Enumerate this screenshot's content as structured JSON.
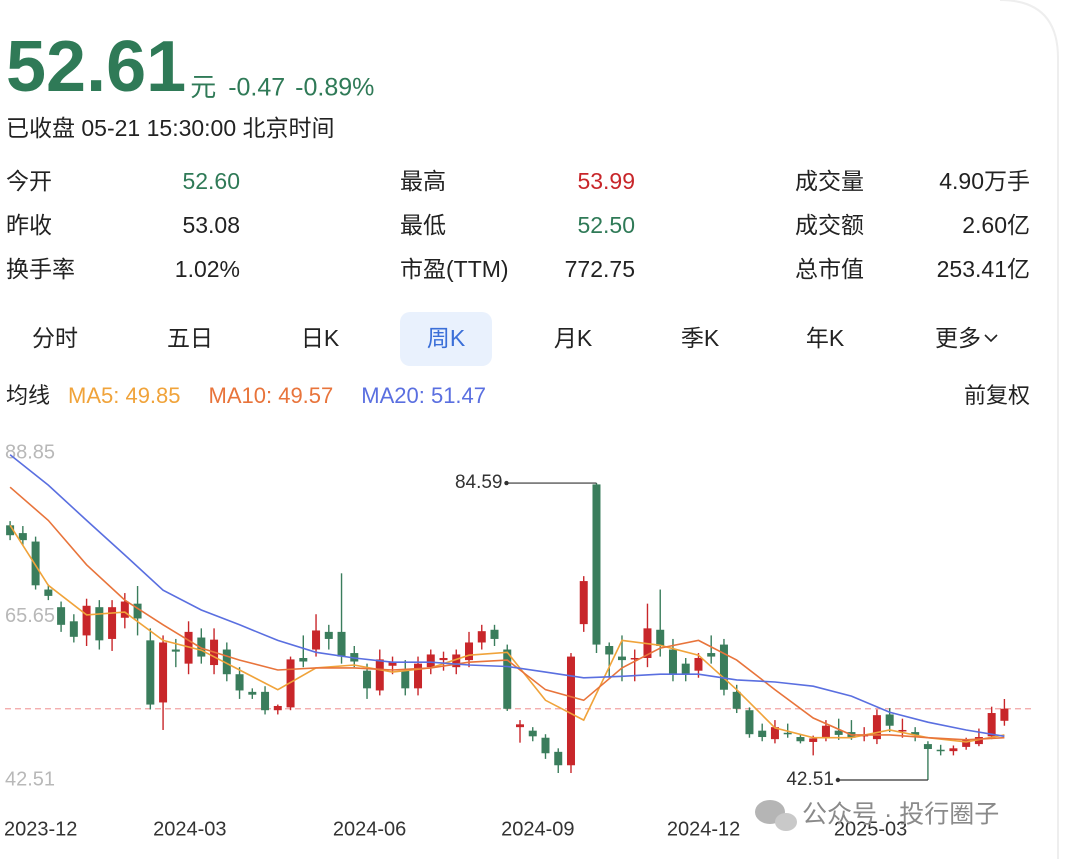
{
  "header": {
    "price": "52.61",
    "unit": "元",
    "change": "-0.47",
    "change_pct": "-0.89%",
    "status": "已收盘 05-21 15:30:00 北京时间",
    "color": "#2f7a57"
  },
  "stats": [
    {
      "label": "今开",
      "value": "52.60",
      "color": "#2f7a57"
    },
    {
      "label": "最高",
      "value": "53.99",
      "color": "#c8262a"
    },
    {
      "label": "成交量",
      "value": "4.90万手",
      "color": "#222222"
    },
    {
      "label": "昨收",
      "value": "53.08",
      "color": "#222222"
    },
    {
      "label": "最低",
      "value": "52.50",
      "color": "#2f7a57"
    },
    {
      "label": "成交额",
      "value": "2.60亿",
      "color": "#222222"
    },
    {
      "label": "换手率",
      "value": "1.02%",
      "color": "#222222"
    },
    {
      "label": "市盈(TTM)",
      "value": "772.75",
      "color": "#222222"
    },
    {
      "label": "总市值",
      "value": "253.41亿",
      "color": "#222222"
    }
  ],
  "tabs": {
    "items": [
      "分时",
      "五日",
      "日K",
      "周K",
      "月K",
      "季K",
      "年K",
      "更多"
    ],
    "active": 3
  },
  "ma_legend": {
    "title": "均线",
    "adjust": "前复权"
  },
  "watermark": {
    "text": "公众号 · 投行圈子"
  },
  "chart_data": {
    "type": "candlestick",
    "up_color": "#c8262a",
    "down_color": "#3a7d5c",
    "xlim": [
      -0.4,
      80.4
    ],
    "xticks": [
      {
        "value": 2.4,
        "label": "2023-12"
      },
      {
        "value": 14.1,
        "label": "2024-03"
      },
      {
        "value": 28.2,
        "label": "2024-06"
      },
      {
        "value": 41.4,
        "label": "2024-09"
      },
      {
        "value": 54.4,
        "label": "2024-12"
      },
      {
        "value": 67.5,
        "label": "2025-03"
      }
    ],
    "ylim": [
      42.51,
      88.85
    ],
    "yticks": [
      88.85,
      65.65,
      42.51
    ],
    "grid": false,
    "open": [
      78.6,
      77.5,
      76.3,
      69.5,
      67,
      65,
      63,
      67,
      62.5,
      65.5,
      67.5,
      62.3,
      53.5,
      61,
      59,
      62.7,
      58.8,
      61,
      57.5,
      55,
      55,
      52.4,
      52.8,
      59.8,
      61,
      63.5,
      63.5,
      60.5,
      58,
      55.2,
      58.7,
      58,
      55.5,
      58.5,
      59.5,
      58.5,
      59.5,
      62,
      63.8,
      61,
      50,
      49.5,
      48.5,
      46.5,
      44.6,
      64.6,
      84.4,
      61.5,
      60,
      59.8,
      59.8,
      63.8,
      61,
      59,
      58,
      60.5,
      61.7,
      55,
      52.4,
      49.5,
      48.3,
      49.2,
      48.6,
      47.9,
      48.5,
      49.5,
      49.3,
      48.8,
      48.3,
      51.8,
      49.5,
      49.3,
      47.6,
      46.8,
      46.6,
      47.2,
      47.6,
      48.7,
      50.9
    ],
    "high": [
      79.2,
      78.5,
      77,
      70.2,
      67.8,
      66,
      68.2,
      68,
      68,
      69,
      70,
      64,
      63,
      62.5,
      65,
      64,
      64,
      62,
      58.5,
      55.5,
      55.8,
      53.2,
      60,
      63,
      66,
      64.5,
      71.8,
      61.5,
      59,
      61,
      60,
      59.5,
      60,
      61,
      60.7,
      61,
      63.5,
      64.5,
      64.5,
      61.7,
      51,
      50,
      49,
      47,
      60.5,
      71.4,
      84.59,
      62,
      63,
      61,
      67.5,
      69.5,
      62.5,
      59.8,
      60.5,
      63,
      62.5,
      56,
      52.8,
      50.5,
      51,
      50.5,
      49,
      48.8,
      51,
      51.2,
      51,
      50,
      52.5,
      52.7,
      51.2,
      50,
      48,
      47.5,
      47.4,
      48.5,
      49.8,
      52.9,
      53.99
    ],
    "low": [
      76.5,
      75.8,
      69.5,
      68,
      63.5,
      62,
      61.5,
      61,
      60.8,
      64,
      63,
      52.5,
      49.6,
      58.5,
      57.5,
      59,
      57.5,
      56.5,
      54,
      54,
      51.8,
      51.8,
      52.4,
      58.5,
      60,
      61,
      59,
      58.5,
      54,
      54.5,
      57.5,
      54.5,
      54.5,
      57.5,
      58,
      57.5,
      58.5,
      61,
      61.5,
      52.3,
      47.8,
      48,
      45.5,
      43.5,
      43.5,
      63.5,
      60.5,
      57,
      56.5,
      56.5,
      58.5,
      60,
      56.5,
      56.5,
      57,
      59,
      54.5,
      52,
      48.5,
      48,
      47.7,
      48.5,
      47.7,
      46,
      48,
      48.2,
      48.2,
      48,
      47.6,
      49.3,
      48.5,
      48,
      42.51,
      46,
      46,
      46.8,
      47.3,
      48.3,
      50.2
    ],
    "close": [
      77.2,
      76.5,
      70.1,
      68.6,
      64.5,
      62.8,
      67.2,
      62.3,
      67,
      67.8,
      65.4,
      53.2,
      62,
      60.7,
      63.5,
      60,
      62.4,
      57.5,
      55.2,
      54.6,
      52.4,
      53,
      59.6,
      59.3,
      63.7,
      62.5,
      60,
      59.3,
      55.5,
      59.6,
      59.2,
      55.5,
      59,
      60.3,
      59.8,
      60.3,
      62,
      63.6,
      62.5,
      52.6,
      50.4,
      48.7,
      46.3,
      44.6,
      60,
      70.7,
      61.7,
      60.3,
      59.5,
      59.8,
      64,
      61.5,
      57.5,
      57.6,
      59.8,
      60,
      55.3,
      52.6,
      49,
      48.6,
      50,
      49,
      48,
      48.4,
      50.2,
      48.9,
      48.5,
      48.9,
      51.7,
      50.2,
      49.6,
      48.9,
      46.9,
      46.6,
      47,
      48.3,
      48.6,
      52,
      52.61
    ],
    "ma_x": [
      0,
      3,
      6,
      9,
      12,
      15,
      18,
      21,
      24,
      27,
      30,
      33,
      36,
      39,
      42,
      45,
      48,
      51,
      54,
      57,
      60,
      63,
      66,
      69,
      72,
      75,
      78
    ],
    "lines": [
      {
        "label": "MA5: 49.85",
        "color": "#f0a33a",
        "values": [
          78.6,
          70.1,
          65.9,
          66.3,
          62.3,
          60.9,
          58.1,
          55.3,
          58.4,
          58.8,
          57.8,
          58.4,
          60.2,
          60.6,
          53.8,
          51,
          62.3,
          61.6,
          60.2,
          55.3,
          49.9,
          48.5,
          48.5,
          49.6,
          48.5,
          47.9,
          48.9
        ]
      },
      {
        "label": "MA10: 49.57",
        "color": "#e8743b",
        "values": [
          84,
          79.3,
          73,
          68,
          64.5,
          61.2,
          59.5,
          58.1,
          58.4,
          58.4,
          58.1,
          58.4,
          59.2,
          59.5,
          55.3,
          53.8,
          58.4,
          61.2,
          62.3,
          59.5,
          55.3,
          51.3,
          48.9,
          48.9,
          48.5,
          48.2,
          48.5
        ]
      },
      {
        "label": "MA20: 51.47",
        "color": "#5a6fe0",
        "values": [
          88.6,
          84.3,
          79.3,
          74.4,
          69.4,
          66.6,
          64.5,
          62.3,
          60.6,
          59.8,
          59.2,
          59.2,
          58.8,
          58.6,
          57.8,
          57,
          57.2,
          57.5,
          57.5,
          56.7,
          56.4,
          55.8,
          54.4,
          52.1,
          50.7,
          49.6,
          48.7
        ]
      }
    ]
  }
}
